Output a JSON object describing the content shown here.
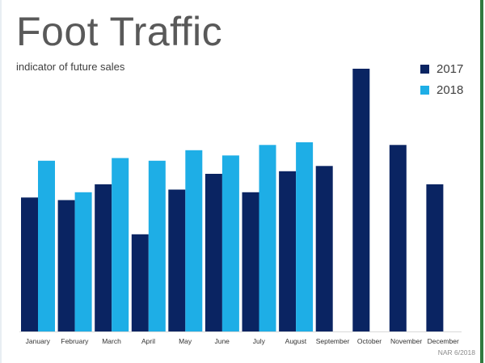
{
  "page": {
    "title": "Foot Traffic",
    "subtitle": "indicator of future sales",
    "source": "NAR 6/2018"
  },
  "colors": {
    "series_2017": "#0a2462",
    "series_2018": "#1eaee6",
    "axis": "#d9d9d9"
  },
  "chart_data": {
    "type": "bar",
    "categories": [
      "January",
      "February",
      "March",
      "April",
      "May",
      "June",
      "July",
      "August",
      "September",
      "October",
      "November",
      "December"
    ],
    "series": [
      {
        "name": "2017",
        "values": [
          51,
          50,
          56,
          37,
          54,
          60,
          53,
          61,
          63,
          100,
          71,
          56
        ]
      },
      {
        "name": "2018",
        "values": [
          65,
          53,
          66,
          65,
          69,
          67,
          71,
          72,
          null,
          null,
          null,
          null
        ]
      }
    ],
    "ylim": [
      0,
      100
    ],
    "grid": false,
    "legend_position": "top-right",
    "title": "Foot Traffic",
    "subtitle": "indicator of future sales"
  }
}
